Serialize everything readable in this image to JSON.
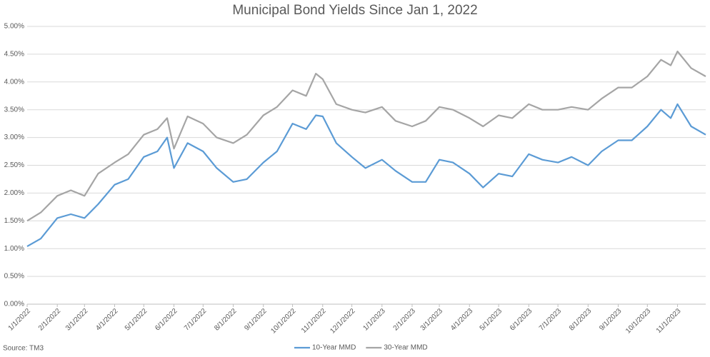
{
  "chart_data": {
    "type": "line",
    "title": "Municipal Bond Yields Since Jan 1, 2022",
    "source": "Source: TM3",
    "x": [
      "1/1/2022",
      "1/15/2022",
      "2/1/2022",
      "2/15/2022",
      "3/1/2022",
      "3/15/2022",
      "4/1/2022",
      "4/15/2022",
      "5/1/2022",
      "5/15/2022",
      "5/25/2022",
      "6/1/2022",
      "6/15/2022",
      "7/1/2022",
      "7/15/2022",
      "8/1/2022",
      "8/15/2022",
      "9/1/2022",
      "9/15/2022",
      "10/1/2022",
      "10/15/2022",
      "10/25/2022",
      "11/1/2022",
      "11/15/2022",
      "12/1/2022",
      "12/15/2022",
      "1/1/2023",
      "1/15/2023",
      "2/1/2023",
      "2/15/2023",
      "3/1/2023",
      "3/15/2023",
      "4/1/2023",
      "4/15/2023",
      "5/1/2023",
      "5/15/2023",
      "6/1/2023",
      "6/15/2023",
      "7/1/2023",
      "7/15/2023",
      "8/1/2023",
      "8/15/2023",
      "9/1/2023",
      "9/15/2023",
      "10/1/2023",
      "10/15/2023",
      "10/25/2023",
      "11/1/2023",
      "11/15/2023",
      "11/30/2023"
    ],
    "series": [
      {
        "name": "10-Year MMD",
        "color": "#5b9bd5",
        "values": [
          1.04,
          1.18,
          1.55,
          1.62,
          1.55,
          1.8,
          2.15,
          2.25,
          2.65,
          2.75,
          3.0,
          2.45,
          2.9,
          2.75,
          2.45,
          2.2,
          2.25,
          2.55,
          2.75,
          3.25,
          3.15,
          3.4,
          3.38,
          2.9,
          2.65,
          2.45,
          2.6,
          2.4,
          2.2,
          2.2,
          2.6,
          2.55,
          2.35,
          2.1,
          2.35,
          2.3,
          2.7,
          2.6,
          2.55,
          2.65,
          2.5,
          2.75,
          2.95,
          2.95,
          3.2,
          3.5,
          3.35,
          3.6,
          3.2,
          3.05
        ]
      },
      {
        "name": "30-Year MMD",
        "color": "#a5a5a5",
        "values": [
          1.5,
          1.65,
          1.95,
          2.05,
          1.95,
          2.35,
          2.55,
          2.7,
          3.05,
          3.15,
          3.35,
          2.8,
          3.38,
          3.25,
          3.0,
          2.9,
          3.05,
          3.4,
          3.55,
          3.85,
          3.75,
          4.15,
          4.05,
          3.6,
          3.5,
          3.45,
          3.55,
          3.3,
          3.2,
          3.3,
          3.55,
          3.5,
          3.35,
          3.2,
          3.4,
          3.35,
          3.6,
          3.5,
          3.5,
          3.55,
          3.5,
          3.7,
          3.9,
          3.9,
          4.1,
          4.4,
          4.3,
          4.55,
          4.25,
          4.1
        ]
      }
    ],
    "xlim": [
      "1/1/2022",
      "11/30/2023"
    ],
    "xticks": [
      "1/1/2022",
      "2/1/2022",
      "3/1/2022",
      "4/1/2022",
      "5/1/2022",
      "6/1/2022",
      "7/1/2022",
      "8/1/2022",
      "9/1/2022",
      "10/1/2022",
      "11/1/2022",
      "12/1/2022",
      "1/1/2023",
      "2/1/2023",
      "3/1/2023",
      "4/1/2023",
      "5/1/2023",
      "6/1/2023",
      "7/1/2023",
      "8/1/2023",
      "9/1/2023",
      "10/1/2023",
      "11/1/2023"
    ],
    "ylim": [
      0,
      5
    ],
    "yticks": [
      {
        "value": 0,
        "label": "0.00%"
      },
      {
        "value": 0.5,
        "label": "0.50%"
      },
      {
        "value": 1,
        "label": "1.00%"
      },
      {
        "value": 1.5,
        "label": "1.50%"
      },
      {
        "value": 2,
        "label": "2.00%"
      },
      {
        "value": 2.5,
        "label": "2.50%"
      },
      {
        "value": 3,
        "label": "3.00%"
      },
      {
        "value": 3.5,
        "label": "3.50%"
      },
      {
        "value": 4,
        "label": "4.00%"
      },
      {
        "value": 4.5,
        "label": "4.50%"
      },
      {
        "value": 5,
        "label": "5.00%"
      }
    ],
    "grid": true,
    "legend": "bottom"
  }
}
